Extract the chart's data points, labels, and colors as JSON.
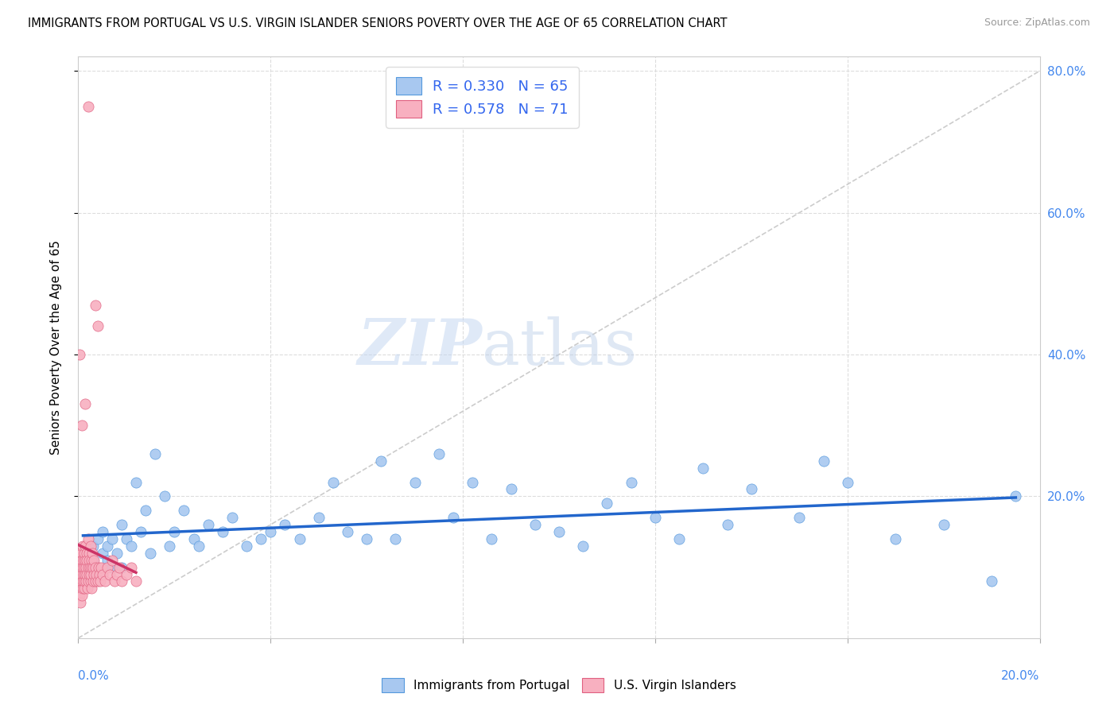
{
  "title": "IMMIGRANTS FROM PORTUGAL VS U.S. VIRGIN ISLANDER SENIORS POVERTY OVER THE AGE OF 65 CORRELATION CHART",
  "source": "Source: ZipAtlas.com",
  "ylabel": "Seniors Poverty Over the Age of 65",
  "legend_blue_R": "0.330",
  "legend_blue_N": "65",
  "legend_pink_R": "0.578",
  "legend_pink_N": "71",
  "legend_blue_label": "Immigrants from Portugal",
  "legend_pink_label": "U.S. Virgin Islanders",
  "watermark_zip": "ZIP",
  "watermark_atlas": "atlas",
  "blue_scatter_color": "#A8C8F0",
  "blue_edge_color": "#5599DD",
  "blue_line_color": "#2266CC",
  "pink_scatter_color": "#F8B0C0",
  "pink_edge_color": "#E06080",
  "pink_line_color": "#CC3366",
  "ref_line_color": "#CCCCCC",
  "grid_color": "#DDDDDD",
  "right_tick_color": "#4488EE",
  "xlim": [
    0.0,
    0.2
  ],
  "ylim": [
    0.0,
    0.82
  ],
  "xgrid": [
    0.04,
    0.08,
    0.12,
    0.16
  ],
  "ygrid": [
    0.2,
    0.4,
    0.6,
    0.8
  ],
  "right_ytick_vals": [
    0.2,
    0.4,
    0.6,
    0.8
  ],
  "right_yticklabels": [
    "20.0%",
    "40.0%",
    "60.0%",
    "80.0%"
  ],
  "blue_x": [
    0.001,
    0.002,
    0.003,
    0.003,
    0.004,
    0.004,
    0.005,
    0.005,
    0.006,
    0.006,
    0.007,
    0.007,
    0.008,
    0.009,
    0.009,
    0.01,
    0.011,
    0.012,
    0.013,
    0.014,
    0.015,
    0.016,
    0.018,
    0.019,
    0.02,
    0.022,
    0.024,
    0.025,
    0.027,
    0.03,
    0.032,
    0.035,
    0.038,
    0.04,
    0.043,
    0.046,
    0.05,
    0.053,
    0.056,
    0.06,
    0.063,
    0.066,
    0.07,
    0.075,
    0.078,
    0.082,
    0.086,
    0.09,
    0.095,
    0.1,
    0.105,
    0.11,
    0.115,
    0.12,
    0.125,
    0.13,
    0.135,
    0.14,
    0.15,
    0.155,
    0.16,
    0.17,
    0.18,
    0.19,
    0.195
  ],
  "blue_y": [
    0.12,
    0.1,
    0.13,
    0.11,
    0.14,
    0.09,
    0.12,
    0.15,
    0.11,
    0.13,
    0.1,
    0.14,
    0.12,
    0.16,
    0.1,
    0.14,
    0.13,
    0.22,
    0.15,
    0.18,
    0.12,
    0.26,
    0.2,
    0.13,
    0.15,
    0.18,
    0.14,
    0.13,
    0.16,
    0.15,
    0.17,
    0.13,
    0.14,
    0.15,
    0.16,
    0.14,
    0.17,
    0.22,
    0.15,
    0.14,
    0.25,
    0.14,
    0.22,
    0.26,
    0.17,
    0.22,
    0.14,
    0.21,
    0.16,
    0.15,
    0.13,
    0.19,
    0.22,
    0.17,
    0.14,
    0.24,
    0.16,
    0.21,
    0.17,
    0.25,
    0.22,
    0.14,
    0.16,
    0.08,
    0.2
  ],
  "pink_x": [
    0.0001,
    0.0002,
    0.0003,
    0.0003,
    0.0004,
    0.0004,
    0.0005,
    0.0005,
    0.0006,
    0.0006,
    0.0007,
    0.0007,
    0.0008,
    0.0008,
    0.0009,
    0.0009,
    0.001,
    0.001,
    0.0011,
    0.0011,
    0.0012,
    0.0012,
    0.0013,
    0.0013,
    0.0014,
    0.0015,
    0.0015,
    0.0016,
    0.0016,
    0.0017,
    0.0018,
    0.0018,
    0.0019,
    0.002,
    0.002,
    0.0021,
    0.0022,
    0.0022,
    0.0023,
    0.0024,
    0.0025,
    0.0025,
    0.0026,
    0.0027,
    0.0028,
    0.0028,
    0.0029,
    0.003,
    0.0031,
    0.0032,
    0.0033,
    0.0035,
    0.0036,
    0.0038,
    0.004,
    0.0042,
    0.0044,
    0.0046,
    0.0048,
    0.005,
    0.0055,
    0.006,
    0.0065,
    0.007,
    0.0075,
    0.008,
    0.0085,
    0.009,
    0.01,
    0.011,
    0.012
  ],
  "pink_y": [
    0.1,
    0.08,
    0.12,
    0.06,
    0.09,
    0.07,
    0.11,
    0.05,
    0.1,
    0.08,
    0.12,
    0.06,
    0.09,
    0.11,
    0.07,
    0.13,
    0.1,
    0.08,
    0.11,
    0.09,
    0.12,
    0.07,
    0.1,
    0.08,
    0.11,
    0.09,
    0.13,
    0.1,
    0.08,
    0.12,
    0.09,
    0.11,
    0.07,
    0.1,
    0.14,
    0.08,
    0.12,
    0.09,
    0.11,
    0.1,
    0.08,
    0.13,
    0.09,
    0.11,
    0.07,
    0.1,
    0.12,
    0.08,
    0.1,
    0.09,
    0.11,
    0.08,
    0.1,
    0.09,
    0.08,
    0.1,
    0.09,
    0.08,
    0.1,
    0.09,
    0.08,
    0.1,
    0.09,
    0.11,
    0.08,
    0.09,
    0.1,
    0.08,
    0.09,
    0.1,
    0.08
  ],
  "pink_outliers_x": [
    0.002,
    0.0035,
    0.004,
    0.0002,
    0.0015,
    0.0008
  ],
  "pink_outliers_y": [
    0.75,
    0.47,
    0.44,
    0.4,
    0.33,
    0.3
  ]
}
